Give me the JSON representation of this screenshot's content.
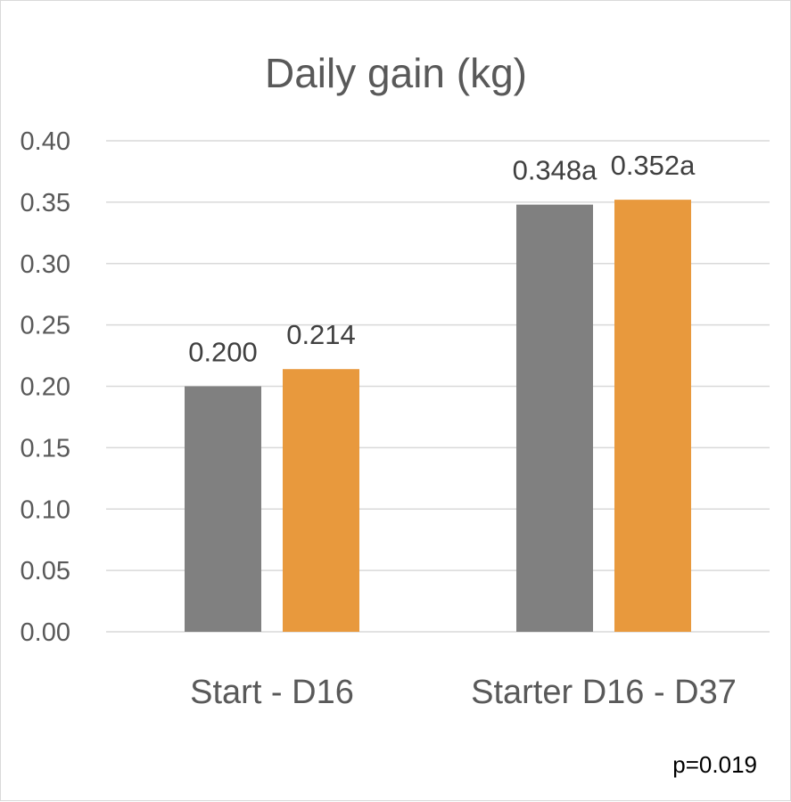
{
  "chart_data": {
    "type": "bar",
    "title": "Daily gain (kg)",
    "categories": [
      "Start - D16",
      "Starter D16 - D37"
    ],
    "series": [
      {
        "color": "#808080",
        "values": [
          0.2,
          0.348
        ],
        "labels": [
          "0.200",
          "0.348a"
        ]
      },
      {
        "color": "#e8993d",
        "values": [
          0.214,
          0.352
        ],
        "labels": [
          "0.214",
          "0.352a"
        ]
      }
    ],
    "ylim": [
      0,
      0.4
    ],
    "yticks": [
      "0.00",
      "0.05",
      "0.10",
      "0.15",
      "0.20",
      "0.25",
      "0.30",
      "0.35",
      "0.40"
    ],
    "grid": true,
    "annotation": "p=0.019"
  }
}
